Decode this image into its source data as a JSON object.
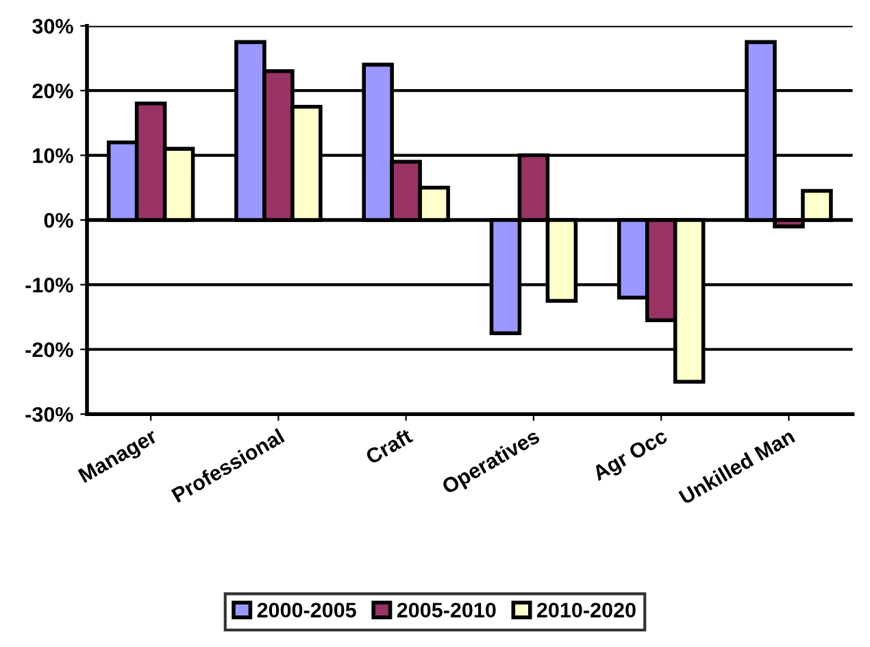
{
  "chart_data": {
    "type": "bar",
    "categories": [
      "Manager",
      "Professional",
      "Craft",
      "Operatives",
      "Agr Occ",
      "Unkilled Man"
    ],
    "series": [
      {
        "name": "2000-2005",
        "color": "#9999ff",
        "values": [
          12,
          27.5,
          24,
          -17.5,
          -12,
          27.5
        ]
      },
      {
        "name": "2005-2010",
        "color": "#993366",
        "values": [
          18,
          23,
          9,
          10,
          -15.5,
          -1
        ]
      },
      {
        "name": "2010-2020",
        "color": "#ffffcc",
        "values": [
          11,
          17.5,
          5,
          -12.5,
          -25,
          4.5
        ]
      }
    ],
    "ylim": [
      -30,
      30
    ],
    "yticks": [
      {
        "value": -30,
        "label": "-30%"
      },
      {
        "value": -20,
        "label": "-20%"
      },
      {
        "value": -10,
        "label": "-10%"
      },
      {
        "value": 0,
        "label": "0%"
      },
      {
        "value": 10,
        "label": "10%"
      },
      {
        "value": 20,
        "label": "20%"
      },
      {
        "value": 30,
        "label": "30%"
      }
    ],
    "grid": "y",
    "legend": "bottom"
  }
}
